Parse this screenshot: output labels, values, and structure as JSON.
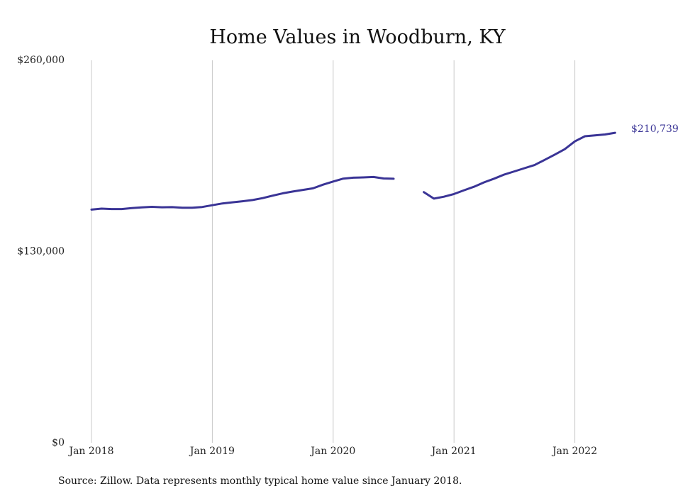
{
  "chart_data": {
    "type": "line",
    "title": "Home Values in Woodburn, KY",
    "source": "Source: Zillow. Data represents monthly typical home value since January 2018.",
    "xlabel": "",
    "ylabel": "",
    "x_ticks": [
      {
        "label": "Jan 2018",
        "date": "2018-01"
      },
      {
        "label": "Jan 2019",
        "date": "2019-01"
      },
      {
        "label": "Jan 2020",
        "date": "2020-01"
      },
      {
        "label": "Jan 2021",
        "date": "2021-01"
      },
      {
        "label": "Jan 2022",
        "date": "2022-01"
      }
    ],
    "y_ticks": [
      {
        "label": "$0",
        "value": 0
      },
      {
        "label": "$130,000",
        "value": 130000
      },
      {
        "label": "$260,000",
        "value": 260000
      }
    ],
    "ylim": [
      0,
      260000
    ],
    "xlim": [
      "2018-01",
      "2022-12"
    ],
    "grid": "vertical",
    "line_color": "#3a3496",
    "end_label": "$210,739",
    "series": [
      {
        "name": "",
        "points": [
          {
            "x": "2018-01",
            "y": 158500
          },
          {
            "x": "2018-02",
            "y": 159200
          },
          {
            "x": "2018-03",
            "y": 158900
          },
          {
            "x": "2018-04",
            "y": 158900
          },
          {
            "x": "2018-05",
            "y": 159500
          },
          {
            "x": "2018-06",
            "y": 160000
          },
          {
            "x": "2018-07",
            "y": 160400
          },
          {
            "x": "2018-08",
            "y": 160100
          },
          {
            "x": "2018-09",
            "y": 160200
          },
          {
            "x": "2018-10",
            "y": 159800
          },
          {
            "x": "2018-11",
            "y": 159800
          },
          {
            "x": "2018-12",
            "y": 160300
          },
          {
            "x": "2019-01",
            "y": 161500
          },
          {
            "x": "2019-02",
            "y": 162700
          },
          {
            "x": "2019-03",
            "y": 163500
          },
          {
            "x": "2019-04",
            "y": 164200
          },
          {
            "x": "2019-05",
            "y": 165000
          },
          {
            "x": "2019-06",
            "y": 166300
          },
          {
            "x": "2019-07",
            "y": 168000
          },
          {
            "x": "2019-08",
            "y": 169600
          },
          {
            "x": "2019-09",
            "y": 170800
          },
          {
            "x": "2019-10",
            "y": 171900
          },
          {
            "x": "2019-11",
            "y": 173000
          },
          {
            "x": "2019-12",
            "y": 175500
          },
          {
            "x": "2020-01",
            "y": 177600
          },
          {
            "x": "2020-02",
            "y": 179600
          },
          {
            "x": "2020-03",
            "y": 180200
          },
          {
            "x": "2020-04",
            "y": 180400
          },
          {
            "x": "2020-05",
            "y": 180700
          },
          {
            "x": "2020-06",
            "y": 179700
          },
          {
            "x": "2020-07",
            "y": 179500
          },
          {
            "x": "2020-08",
            "y": null
          },
          {
            "x": "2020-09",
            "y": null
          },
          {
            "x": "2020-10",
            "y": 170400
          },
          {
            "x": "2020-11",
            "y": 166000
          },
          {
            "x": "2020-12",
            "y": 167300
          },
          {
            "x": "2021-01",
            "y": 169100
          },
          {
            "x": "2021-02",
            "y": 171700
          },
          {
            "x": "2021-03",
            "y": 174100
          },
          {
            "x": "2021-04",
            "y": 177100
          },
          {
            "x": "2021-05",
            "y": 179600
          },
          {
            "x": "2021-06",
            "y": 182400
          },
          {
            "x": "2021-07",
            "y": 184500
          },
          {
            "x": "2021-08",
            "y": 186700
          },
          {
            "x": "2021-09",
            "y": 188800
          },
          {
            "x": "2021-10",
            "y": 192300
          },
          {
            "x": "2021-11",
            "y": 195900
          },
          {
            "x": "2021-12",
            "y": 199600
          },
          {
            "x": "2022-01",
            "y": 204900
          },
          {
            "x": "2022-02",
            "y": 208400
          },
          {
            "x": "2022-03",
            "y": 209000
          },
          {
            "x": "2022-04",
            "y": 209600
          },
          {
            "x": "2022-05",
            "y": 210739
          }
        ]
      }
    ]
  }
}
